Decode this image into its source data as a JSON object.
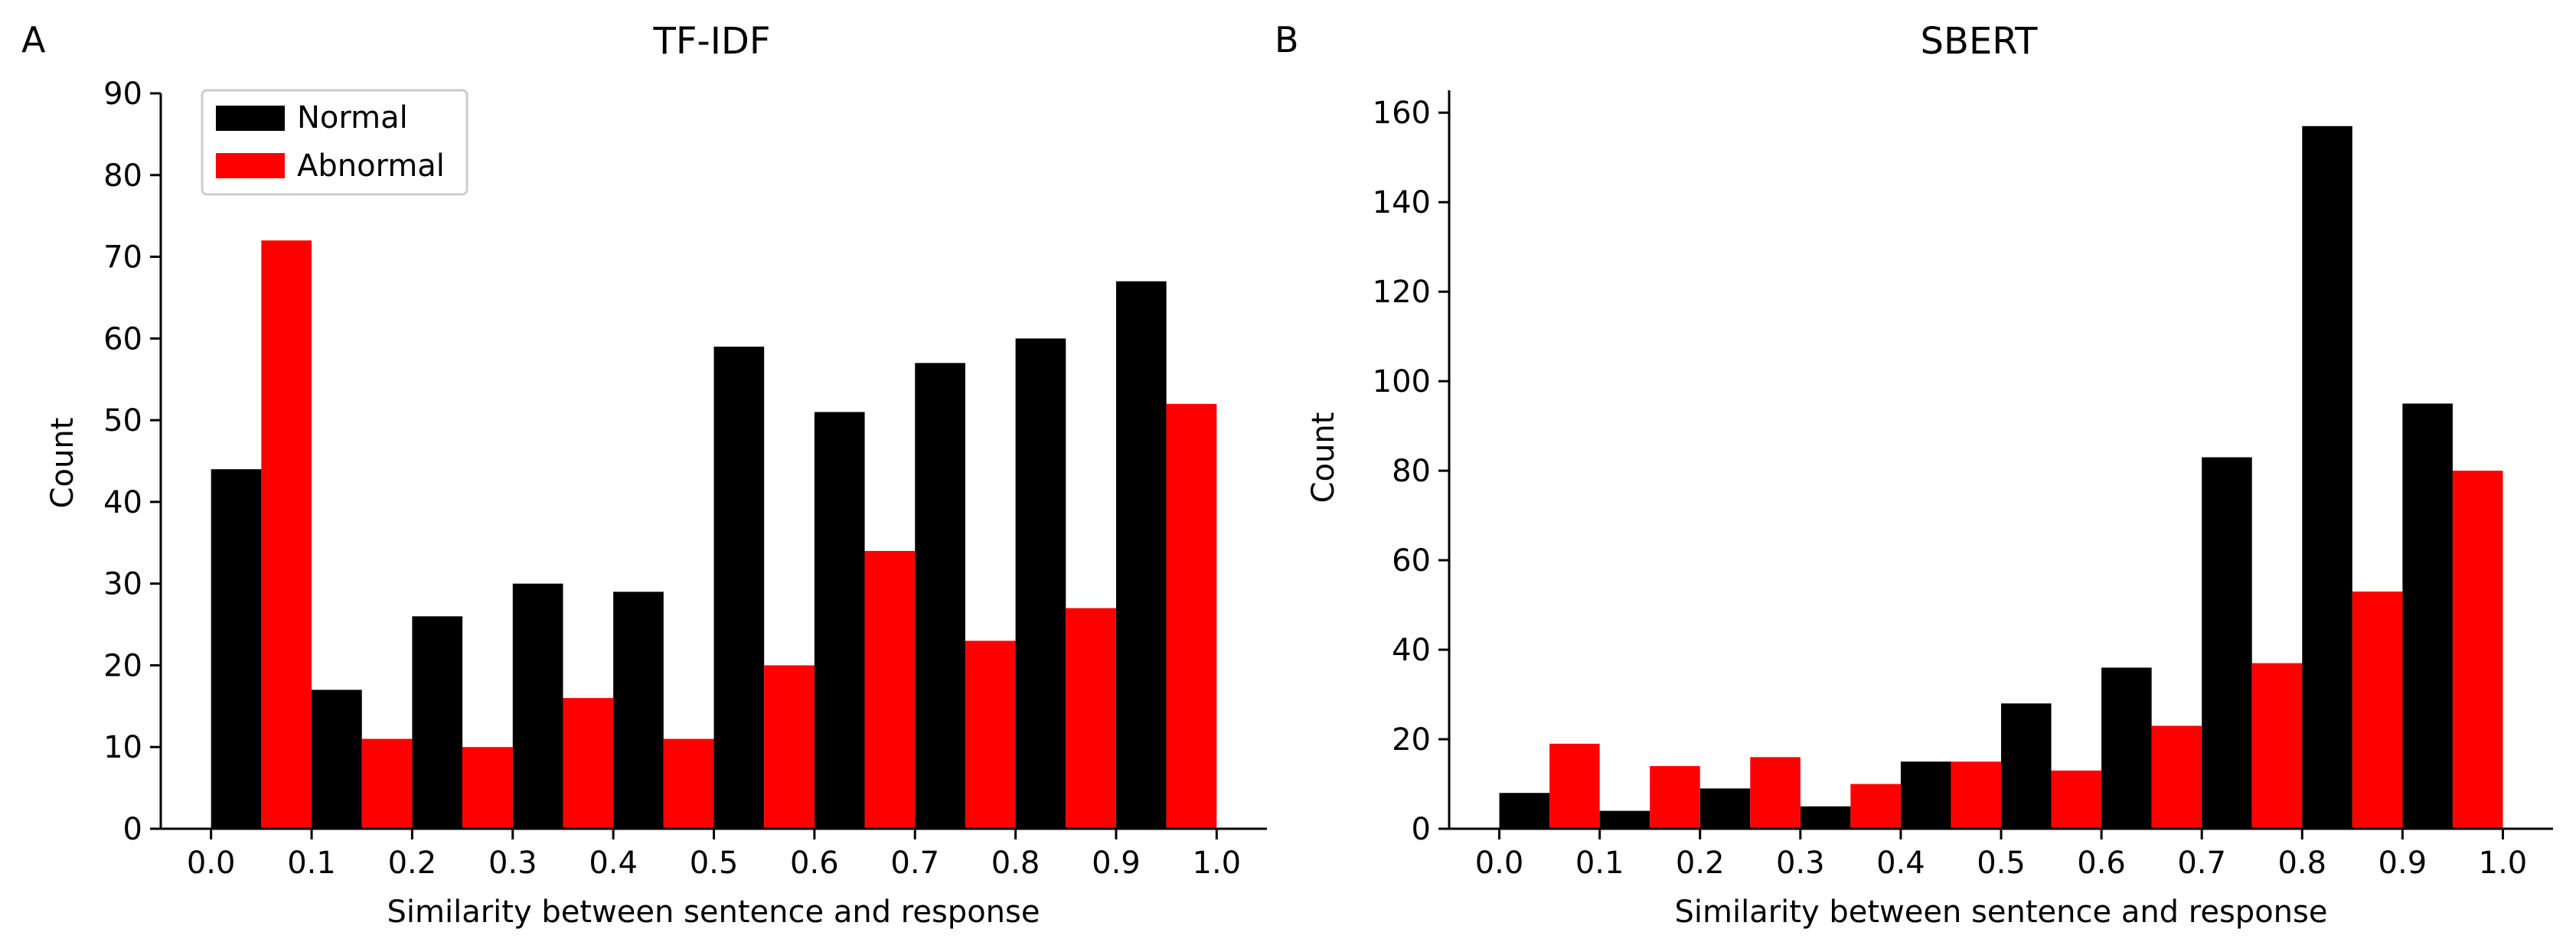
{
  "panel_labels": [
    "A",
    "B"
  ],
  "chart_data": [
    {
      "type": "bar",
      "panel": "A",
      "title": "TF-IDF",
      "xlabel": "Similarity between sentence and response",
      "ylabel": "Count",
      "xlim": [
        -0.05,
        1.05
      ],
      "ylim": [
        0,
        90
      ],
      "xticks": [
        "0.0",
        "0.1",
        "0.2",
        "0.3",
        "0.4",
        "0.5",
        "0.6",
        "0.7",
        "0.8",
        "0.9",
        "1.0"
      ],
      "yticks": [
        "0",
        "10",
        "20",
        "30",
        "40",
        "50",
        "60",
        "70",
        "80",
        "90"
      ],
      "bins": [
        0.0,
        0.1,
        0.2,
        0.3,
        0.4,
        0.5,
        0.6,
        0.7,
        0.8,
        0.9
      ],
      "bin_width": 0.1,
      "legend": {
        "location": "upper-left",
        "entries": [
          "Normal",
          "Abnormal"
        ]
      },
      "series": [
        {
          "name": "Normal",
          "color": "#000000",
          "values": [
            44,
            17,
            26,
            30,
            29,
            59,
            51,
            57,
            60,
            67
          ]
        },
        {
          "name": "Abnormal",
          "color": "#ff0000",
          "values": [
            72,
            11,
            10,
            16,
            11,
            20,
            34,
            23,
            27,
            52
          ]
        }
      ]
    },
    {
      "type": "bar",
      "panel": "B",
      "title": "SBERT",
      "xlabel": "Similarity between sentence and response",
      "ylabel": "Count",
      "xlim": [
        -0.05,
        1.05
      ],
      "ylim": [
        0,
        165
      ],
      "xticks": [
        "0.0",
        "0.1",
        "0.2",
        "0.3",
        "0.4",
        "0.5",
        "0.6",
        "0.7",
        "0.8",
        "0.9",
        "1.0"
      ],
      "yticks": [
        "0",
        "20",
        "40",
        "60",
        "80",
        "100",
        "120",
        "140",
        "160"
      ],
      "bins": [
        0.0,
        0.1,
        0.2,
        0.3,
        0.4,
        0.5,
        0.6,
        0.7,
        0.8,
        0.9
      ],
      "bin_width": 0.1,
      "series": [
        {
          "name": "Normal",
          "color": "#000000",
          "values": [
            8,
            4,
            9,
            5,
            15,
            28,
            36,
            83,
            157,
            95
          ]
        },
        {
          "name": "Abnormal",
          "color": "#ff0000",
          "values": [
            19,
            14,
            16,
            10,
            15,
            13,
            23,
            37,
            53,
            80
          ]
        }
      ]
    }
  ]
}
